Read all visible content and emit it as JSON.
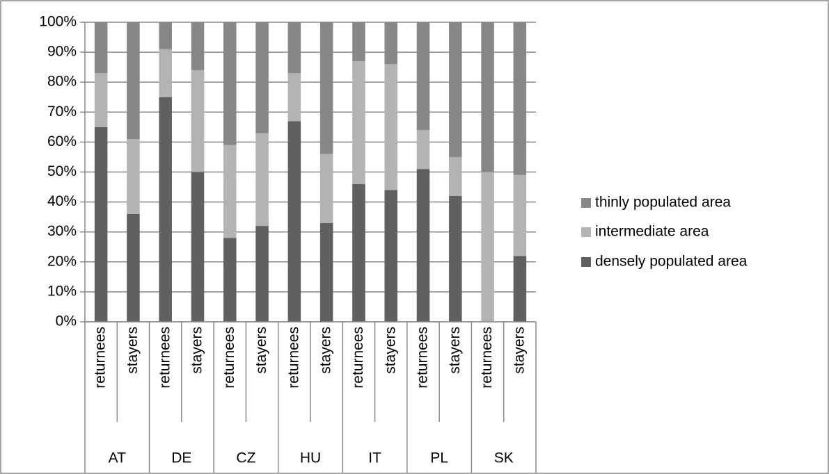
{
  "chart_data": {
    "type": "stacked_bar",
    "groups": [
      "AT",
      "DE",
      "CZ",
      "HU",
      "IT",
      "PL",
      "SK"
    ],
    "categories": [
      "returnees",
      "stayers",
      "returnees",
      "stayers",
      "returnees",
      "stayers",
      "returnees",
      "stayers",
      "returnees",
      "stayers",
      "returnees",
      "stayers",
      "returnees",
      "stayers"
    ],
    "series": [
      {
        "name": "densely populated area",
        "color": "#606060",
        "values": [
          65,
          36,
          75,
          50,
          28,
          32,
          67,
          33,
          46,
          44,
          51,
          42,
          0,
          22
        ]
      },
      {
        "name": "intermediate area",
        "color": "#b3b3b3",
        "values": [
          18,
          25,
          16,
          34,
          31,
          31,
          16,
          23,
          41,
          42,
          13,
          13,
          50,
          27
        ]
      },
      {
        "name": "thinly populated area",
        "color": "#878787",
        "values": [
          17,
          39,
          9,
          16,
          41,
          37,
          17,
          44,
          13,
          14,
          36,
          45,
          50,
          51
        ]
      }
    ],
    "ylim": [
      0,
      100
    ],
    "yticks": [
      {
        "value": 0,
        "label": "0%"
      },
      {
        "value": 10,
        "label": "10%"
      },
      {
        "value": 20,
        "label": "20%"
      },
      {
        "value": 30,
        "label": "30%"
      },
      {
        "value": 40,
        "label": "40%"
      },
      {
        "value": 50,
        "label": "50%"
      },
      {
        "value": 60,
        "label": "60%"
      },
      {
        "value": 70,
        "label": "70%"
      },
      {
        "value": 80,
        "label": "80%"
      },
      {
        "value": 90,
        "label": "90%"
      },
      {
        "value": 100,
        "label": "100%"
      }
    ],
    "grid": true,
    "legend": "right"
  }
}
